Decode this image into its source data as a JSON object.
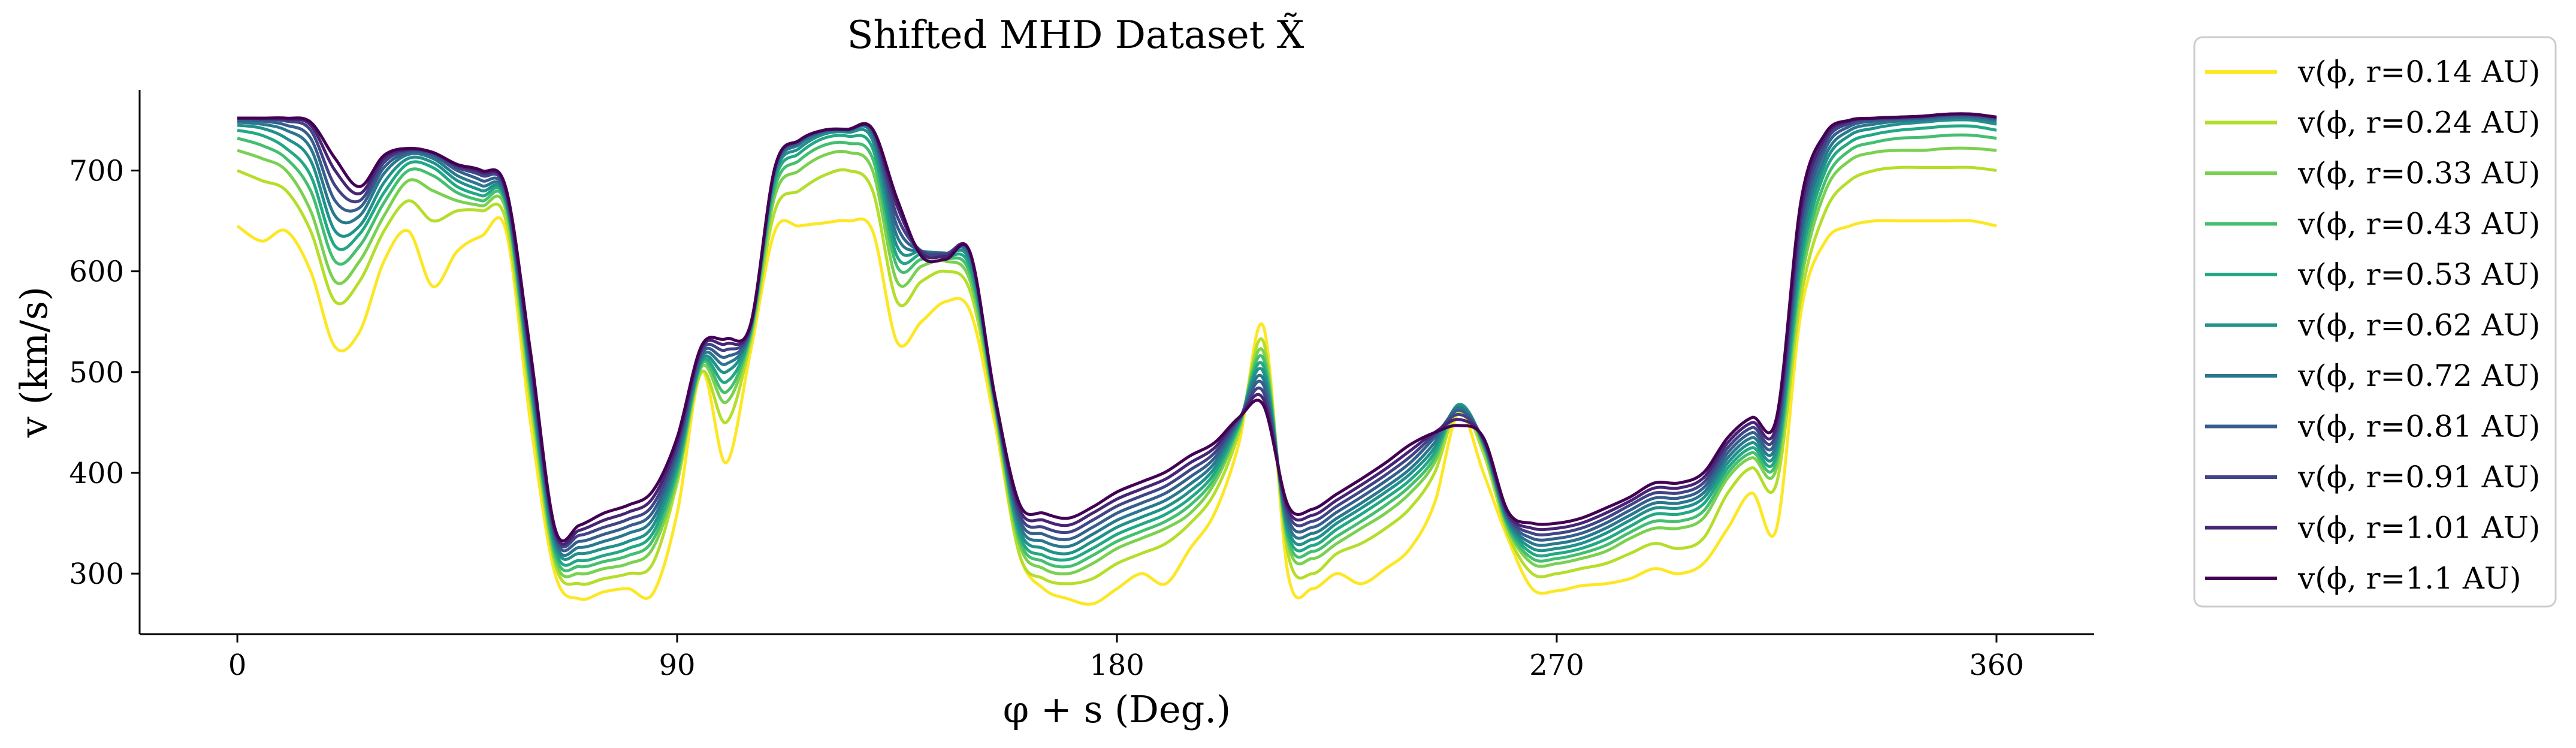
{
  "chart_data": {
    "type": "line",
    "title": "Shifted MHD Dataset X̃",
    "xlabel": "φ + s (Deg.)",
    "ylabel": "v (km/s)",
    "xlim": [
      -20,
      380
    ],
    "ylim": [
      240,
      780
    ],
    "xticks": [
      0,
      90,
      180,
      270,
      360
    ],
    "yticks": [
      300,
      400,
      500,
      600,
      700
    ],
    "grid": false,
    "legend_position": "outside-right",
    "x": [
      0,
      5,
      10,
      15,
      20,
      25,
      30,
      35,
      40,
      45,
      50,
      55,
      60,
      65,
      70,
      75,
      80,
      85,
      90,
      95,
      100,
      105,
      110,
      115,
      120,
      125,
      130,
      135,
      140,
      145,
      150,
      155,
      160,
      165,
      170,
      175,
      180,
      185,
      190,
      195,
      200,
      205,
      210,
      215,
      220,
      225,
      230,
      235,
      240,
      245,
      250,
      255,
      260,
      265,
      270,
      275,
      280,
      285,
      290,
      295,
      300,
      305,
      310,
      315,
      320,
      325,
      330,
      335,
      340,
      345,
      350,
      355,
      360
    ],
    "series": [
      {
        "name": "v(ϕ, r=0.14 AU)",
        "color": "#fde725",
        "values": [
          645,
          630,
          640,
          600,
          525,
          540,
          610,
          640,
          585,
          620,
          635,
          640,
          450,
          300,
          275,
          282,
          285,
          280,
          360,
          500,
          410,
          520,
          640,
          645,
          648,
          650,
          640,
          530,
          550,
          570,
          560,
          450,
          320,
          285,
          275,
          270,
          285,
          300,
          290,
          325,
          360,
          430,
          545,
          300,
          285,
          300,
          290,
          305,
          325,
          370,
          460,
          400,
          335,
          285,
          283,
          288,
          290,
          295,
          305,
          300,
          310,
          345,
          380,
          345,
          560,
          630,
          645,
          650,
          650,
          650,
          650,
          650,
          645
        ]
      },
      {
        "name": "v(ϕ, r=0.24 AU)",
        "color": "#b5de2b",
        "values": [
          700,
          690,
          680,
          640,
          570,
          590,
          640,
          670,
          650,
          660,
          660,
          650,
          470,
          310,
          290,
          295,
          300,
          310,
          390,
          500,
          450,
          530,
          660,
          680,
          695,
          700,
          680,
          570,
          590,
          600,
          580,
          460,
          320,
          295,
          290,
          295,
          310,
          320,
          330,
          350,
          380,
          440,
          530,
          320,
          300,
          320,
          330,
          345,
          365,
          400,
          465,
          420,
          340,
          300,
          300,
          305,
          310,
          320,
          330,
          325,
          335,
          380,
          405,
          390,
          575,
          660,
          690,
          700,
          703,
          703,
          703,
          703,
          700
        ]
      },
      {
        "name": "v(ϕ, r=0.33 AU)",
        "color": "#7ad151",
        "values": [
          720,
          712,
          700,
          660,
          590,
          610,
          655,
          690,
          680,
          670,
          665,
          660,
          480,
          315,
          300,
          305,
          310,
          325,
          395,
          505,
          470,
          535,
          675,
          700,
          715,
          718,
          700,
          590,
          605,
          610,
          590,
          465,
          330,
          305,
          300,
          310,
          325,
          335,
          345,
          360,
          390,
          445,
          520,
          330,
          315,
          330,
          345,
          360,
          380,
          410,
          468,
          425,
          345,
          310,
          310,
          315,
          322,
          335,
          345,
          345,
          355,
          395,
          415,
          405,
          590,
          680,
          710,
          718,
          720,
          720,
          722,
          722,
          720
        ]
      },
      {
        "name": "v(ϕ, r=0.43 AU)",
        "color": "#44bf70",
        "values": [
          732,
          725,
          712,
          680,
          610,
          625,
          668,
          700,
          695,
          678,
          670,
          665,
          485,
          320,
          307,
          312,
          318,
          333,
          400,
          508,
          480,
          538,
          683,
          710,
          725,
          727,
          712,
          605,
          612,
          613,
          597,
          468,
          335,
          312,
          307,
          318,
          332,
          342,
          352,
          368,
          395,
          447,
          513,
          335,
          322,
          337,
          352,
          368,
          387,
          415,
          468,
          427,
          347,
          315,
          315,
          320,
          328,
          341,
          352,
          352,
          362,
          400,
          420,
          412,
          600,
          690,
          720,
          728,
          732,
          733,
          735,
          735,
          732
        ]
      },
      {
        "name": "v(ϕ, r=0.53 AU)",
        "color": "#22a884",
        "values": [
          740,
          735,
          722,
          695,
          625,
          637,
          678,
          707,
          703,
          684,
          675,
          668,
          490,
          325,
          313,
          318,
          325,
          340,
          405,
          510,
          490,
          540,
          690,
          717,
          732,
          734,
          722,
          615,
          617,
          615,
          603,
          470,
          340,
          318,
          314,
          325,
          339,
          349,
          359,
          375,
          400,
          449,
          506,
          340,
          328,
          344,
          359,
          375,
          393,
          420,
          468,
          429,
          350,
          320,
          320,
          325,
          334,
          347,
          359,
          359,
          369,
          405,
          425,
          418,
          610,
          700,
          728,
          736,
          740,
          742,
          744,
          744,
          740
        ]
      },
      {
        "name": "v(ϕ, r=0.62 AU)",
        "color": "#21918c",
        "values": [
          745,
          742,
          732,
          710,
          640,
          645,
          688,
          712,
          708,
          690,
          680,
          670,
          495,
          330,
          320,
          325,
          332,
          347,
          410,
          512,
          500,
          542,
          695,
          722,
          736,
          738,
          730,
          625,
          620,
          617,
          608,
          472,
          345,
          325,
          320,
          332,
          346,
          356,
          366,
          382,
          405,
          451,
          500,
          345,
          334,
          350,
          365,
          381,
          399,
          425,
          467,
          430,
          352,
          325,
          325,
          330,
          340,
          353,
          365,
          365,
          375,
          410,
          430,
          424,
          620,
          708,
          735,
          742,
          746,
          748,
          750,
          750,
          746
        ]
      },
      {
        "name": "v(ϕ, r=0.72 AU)",
        "color": "#2a788e",
        "values": [
          748,
          746,
          740,
          722,
          655,
          655,
          697,
          716,
          712,
          695,
          685,
          672,
          500,
          333,
          326,
          332,
          340,
          354,
          415,
          515,
          508,
          543,
          698,
          726,
          738,
          740,
          735,
          635,
          620,
          618,
          612,
          473,
          350,
          332,
          327,
          339,
          353,
          363,
          373,
          389,
          410,
          452,
          493,
          350,
          340,
          355,
          370,
          386,
          404,
          430,
          465,
          431,
          354,
          330,
          330,
          335,
          345,
          358,
          370,
          370,
          380,
          415,
          435,
          430,
          630,
          715,
          740,
          746,
          749,
          750,
          752,
          752,
          749
        ]
      },
      {
        "name": "v(ϕ, r=0.81 AU)",
        "color": "#355f8d",
        "values": [
          750,
          749,
          745,
          732,
          670,
          663,
          703,
          718,
          715,
          700,
          690,
          675,
          505,
          337,
          332,
          339,
          347,
          361,
          420,
          518,
          515,
          544,
          700,
          728,
          739,
          740,
          738,
          645,
          620,
          618,
          615,
          474,
          355,
          339,
          334,
          346,
          360,
          370,
          380,
          396,
          415,
          453,
          487,
          355,
          346,
          361,
          376,
          392,
          410,
          435,
          462,
          432,
          356,
          335,
          335,
          340,
          350,
          363,
          375,
          375,
          385,
          420,
          440,
          436,
          640,
          722,
          744,
          749,
          751,
          752,
          754,
          754,
          751
        ]
      },
      {
        "name": "v(ϕ, r=0.91 AU)",
        "color": "#414487",
        "values": [
          752,
          751,
          749,
          740,
          685,
          670,
          708,
          720,
          717,
          703,
          695,
          678,
          510,
          340,
          338,
          346,
          354,
          368,
          425,
          521,
          522,
          545,
          702,
          729,
          740,
          741,
          740,
          655,
          620,
          617,
          617,
          475,
          360,
          346,
          341,
          353,
          367,
          377,
          387,
          403,
          420,
          454,
          480,
          360,
          352,
          367,
          382,
          398,
          416,
          438,
          458,
          433,
          358,
          340,
          340,
          345,
          355,
          368,
          380,
          380,
          390,
          425,
          445,
          442,
          650,
          728,
          747,
          751,
          752,
          753,
          755,
          755,
          752
        ]
      },
      {
        "name": "v(ϕ, r=1.01 AU)",
        "color": "#482475",
        "values": [
          752,
          752,
          751,
          745,
          700,
          677,
          712,
          721,
          718,
          705,
          698,
          680,
          515,
          342,
          343,
          353,
          361,
          375,
          430,
          524,
          528,
          546,
          703,
          730,
          740,
          741,
          741,
          665,
          618,
          615,
          618,
          476,
          365,
          353,
          348,
          360,
          374,
          384,
          394,
          410,
          425,
          455,
          473,
          364,
          358,
          373,
          388,
          404,
          422,
          440,
          453,
          434,
          360,
          345,
          345,
          350,
          360,
          372,
          385,
          385,
          395,
          430,
          450,
          448,
          660,
          733,
          749,
          752,
          753,
          754,
          756,
          756,
          753
        ]
      },
      {
        "name": "v(ϕ, r=1.1 AU)",
        "color": "#440154",
        "values": [
          752,
          752,
          752,
          748,
          712,
          684,
          715,
          722,
          718,
          706,
          700,
          682,
          520,
          345,
          348,
          360,
          368,
          382,
          435,
          526,
          533,
          547,
          703,
          730,
          740,
          741,
          741,
          672,
          615,
          612,
          618,
          477,
          370,
          360,
          355,
          366,
          381,
          391,
          401,
          417,
          430,
          455,
          467,
          368,
          364,
          379,
          394,
          410,
          428,
          440,
          447,
          435,
          362,
          350,
          350,
          355,
          365,
          376,
          390,
          390,
          400,
          435,
          455,
          455,
          670,
          737,
          750,
          752,
          753,
          754,
          756,
          756,
          753
        ]
      }
    ]
  }
}
